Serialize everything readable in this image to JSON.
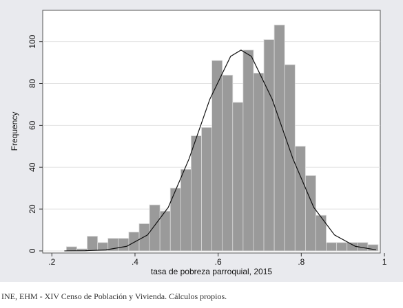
{
  "chart_data": {
    "type": "histogram",
    "x_label": "tasa de pobreza parroquial, 2015",
    "y_label": "Frequency",
    "source": "INE, EHM - XIV Censo de Población y Vivienda. Cálculos propios.",
    "bins": [
      0.235,
      0.26,
      0.285,
      0.31,
      0.335,
      0.36,
      0.385,
      0.41,
      0.435,
      0.46,
      0.485,
      0.51,
      0.535,
      0.56,
      0.585,
      0.61,
      0.635,
      0.66,
      0.685,
      0.71,
      0.735,
      0.76,
      0.785,
      0.81,
      0.835,
      0.86,
      0.885,
      0.91,
      0.935,
      0.96,
      0.985
    ],
    "values": [
      2,
      1,
      7,
      4,
      6,
      6,
      9,
      13,
      22,
      19,
      30,
      39,
      55,
      59,
      91,
      84,
      71,
      96,
      85,
      101,
      108,
      89,
      50,
      36,
      17,
      4,
      4,
      4,
      4,
      3
    ],
    "color": "#9a9a9a",
    "curve": {
      "x": [
        0.23,
        0.28,
        0.33,
        0.38,
        0.43,
        0.48,
        0.53,
        0.58,
        0.63,
        0.655,
        0.68,
        0.73,
        0.78,
        0.83,
        0.88,
        0.93,
        0.98
      ],
      "y": [
        0.01,
        0.08,
        0.49,
        2.2,
        7.6,
        20.8,
        44,
        72.5,
        93,
        96,
        93,
        72.5,
        44,
        20.8,
        7.6,
        2.2,
        0.49
      ],
      "color": "#111111"
    },
    "xlim": [
      0.178,
      0.99
    ],
    "ylim": [
      -1,
      115
    ],
    "xticks": [
      {
        "value": 0.2,
        "label": ".2"
      },
      {
        "value": 0.4,
        "label": ".4"
      },
      {
        "value": 0.6,
        "label": ".6"
      },
      {
        "value": 0.8,
        "label": ".8"
      },
      1
    ],
    "yticks": [
      0,
      20,
      40,
      60,
      80,
      100
    ],
    "grid": true
  }
}
